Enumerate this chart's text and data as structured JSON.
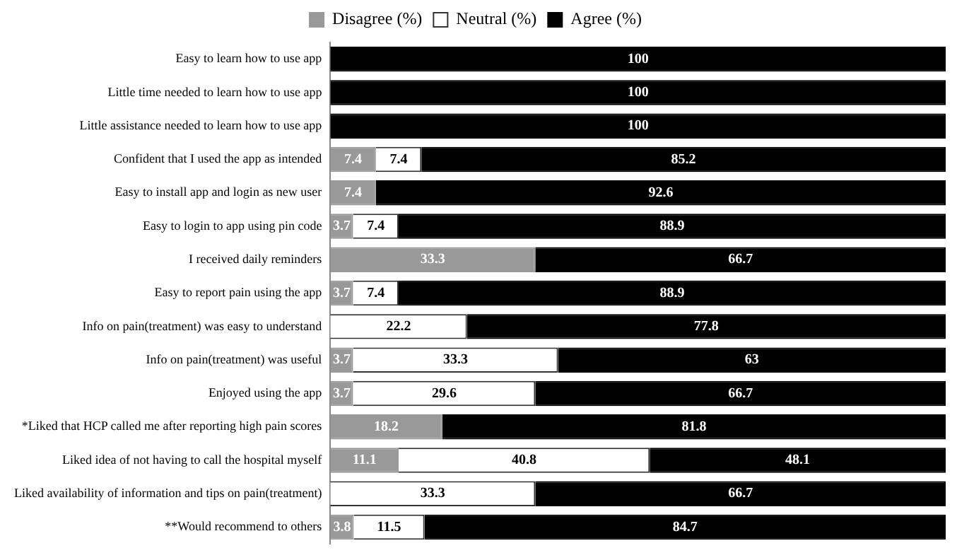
{
  "chart_data": {
    "type": "bar",
    "orientation": "horizontal",
    "stacked": true,
    "legend": "top",
    "grid": false,
    "tick_labels": "y",
    "categories": [
      "Easy to learn how to use app",
      "Little time needed to learn how to use app",
      "Little assistance needed to learn how to use app",
      "Confident that I used the app as intended",
      "Easy to install app and login as new user",
      "Easy to login to app using pin code",
      "I received daily reminders",
      "Easy to report pain using the app",
      "Info on pain(treatment) was easy to understand",
      "Info on pain(treatment) was useful",
      "Enjoyed using the app",
      "*Liked that HCP called me after reporting high pain scores",
      "Liked idea of not having to call the hospital myself",
      "Liked availability of information and tips on pain(treatment)",
      "**Would recommend to others"
    ],
    "series": [
      {
        "name": "Disagree (%)",
        "color": "#999999",
        "values": [
          0,
          0,
          0,
          7.4,
          7.4,
          3.7,
          33.3,
          3.7,
          0,
          3.7,
          3.7,
          18.2,
          11.1,
          0,
          3.8
        ],
        "value_labels": [
          null,
          null,
          null,
          "7.4",
          "7.4",
          "3.7",
          "33.3",
          "3.7",
          null,
          "3.7",
          "3.7",
          "18.2",
          "11.1",
          null,
          "3.8"
        ]
      },
      {
        "name": "Neutral (%)",
        "color": "#ffffff",
        "values": [
          0,
          0,
          0,
          7.4,
          0,
          7.4,
          0,
          7.4,
          22.2,
          33.3,
          29.6,
          0,
          40.8,
          33.3,
          11.5
        ],
        "value_labels": [
          null,
          null,
          null,
          "7.4",
          null,
          "7.4",
          null,
          "7.4",
          "22.2",
          "33.3",
          "29.6",
          null,
          "40.8",
          "33.3",
          "11.5"
        ]
      },
      {
        "name": "Agree (%)",
        "color": "#000000",
        "values": [
          100,
          100,
          100,
          85.2,
          92.6,
          88.9,
          66.7,
          88.9,
          77.8,
          63,
          66.7,
          81.8,
          48.1,
          66.7,
          84.7
        ],
        "value_labels": [
          "100",
          "100",
          "100",
          "85.2",
          "92.6",
          "88.9",
          "66.7",
          "88.9",
          "77.8",
          "63",
          "66.7",
          "81.8",
          "48.1",
          "66.7",
          "84.7"
        ]
      }
    ]
  }
}
